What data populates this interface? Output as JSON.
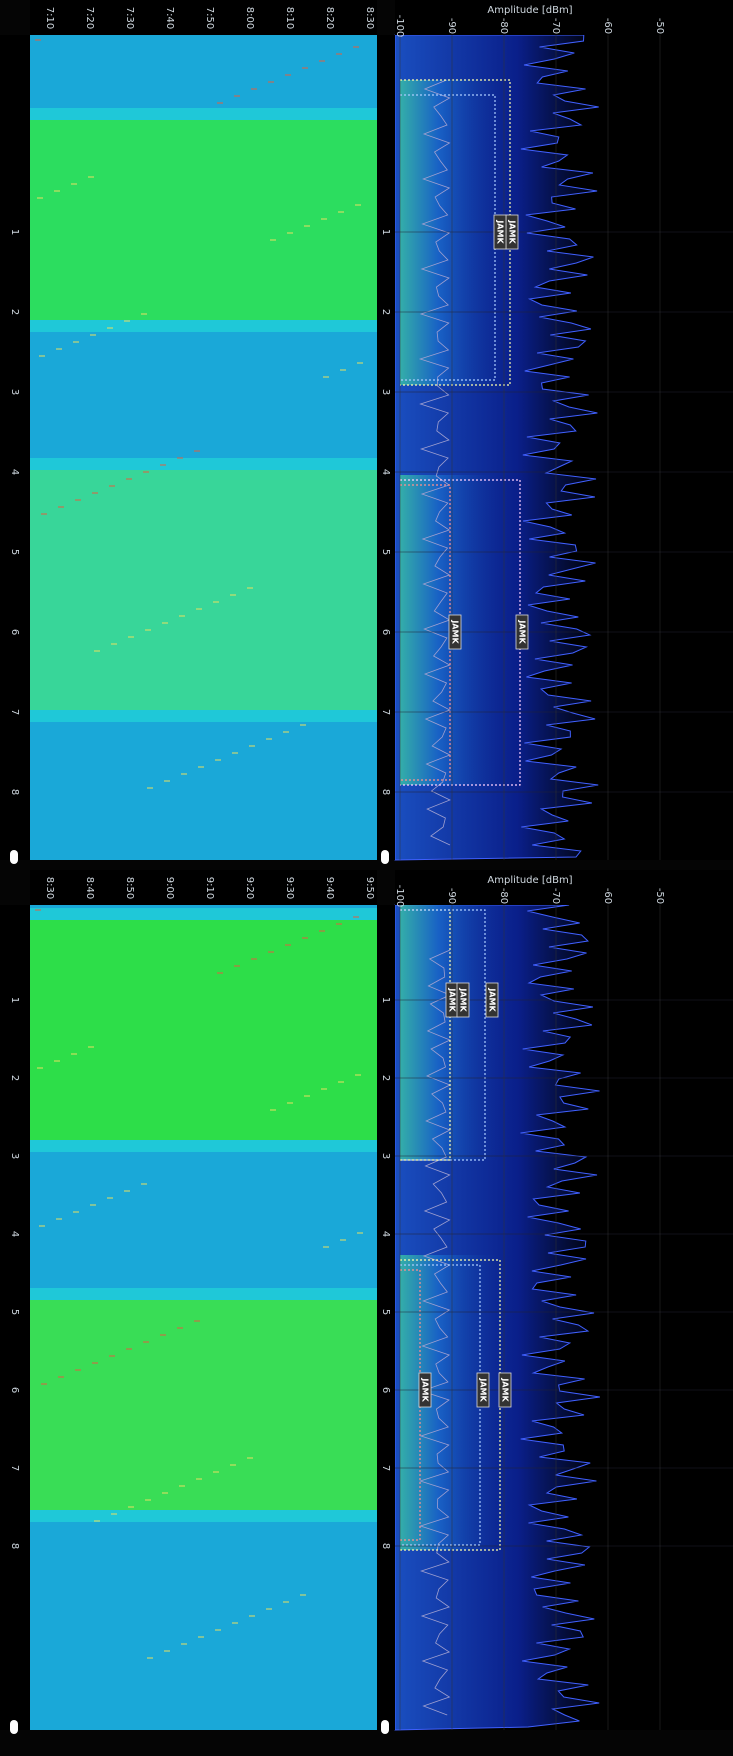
{
  "panels": [
    {
      "times": [
        "7:10",
        "7:20",
        "7:30",
        "7:40",
        "7:50",
        "8:00",
        "8:10",
        "8:20",
        "8:30"
      ],
      "amplitude_title": "Amplitude [dBm]",
      "amplitude_ticks": [
        "-100",
        "-90",
        "-80",
        "-70",
        "-60",
        "-50"
      ],
      "channels": [
        "1",
        "2",
        "3",
        "4",
        "5",
        "6",
        "7",
        "8"
      ],
      "jam_labels": [
        "JAMK",
        "JAMK",
        "JAMK",
        "JAMK"
      ]
    },
    {
      "times": [
        "8:30",
        "8:40",
        "8:50",
        "9:00",
        "9:10",
        "9:20",
        "9:30",
        "9:40",
        "9:50"
      ],
      "amplitude_title": "Amplitude [dBm]",
      "amplitude_ticks": [
        "-100",
        "-90",
        "-80",
        "-70",
        "-60",
        "-50"
      ],
      "channels": [
        "1",
        "2",
        "3",
        "4",
        "5",
        "6",
        "7",
        "8"
      ],
      "jam_labels": [
        "JAMK",
        "JAMK",
        "JAMK",
        "JAMK",
        "JAMK",
        "JAMK"
      ]
    }
  ]
}
